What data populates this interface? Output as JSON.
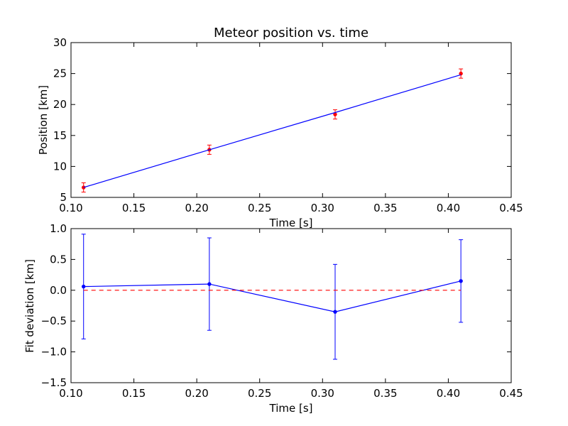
{
  "chart_data": [
    {
      "type": "line",
      "title": "Meteor position vs. time",
      "xlabel": "Time [s]",
      "ylabel": "Position [km]",
      "xlim": [
        0.1,
        0.45
      ],
      "ylim": [
        5,
        30
      ],
      "x_ticks": [
        "0.10",
        "0.15",
        "0.20",
        "0.25",
        "0.30",
        "0.35",
        "0.40",
        "0.45"
      ],
      "y_ticks": [
        "5",
        "10",
        "15",
        "20",
        "25",
        "30"
      ],
      "grid": false,
      "series": [
        {
          "kind": "errorbar-points",
          "x": [
            0.11,
            0.21,
            0.31,
            0.41
          ],
          "y": [
            6.6,
            12.7,
            18.4,
            25.0
          ],
          "yerr": [
            0.75,
            0.75,
            0.75,
            0.75
          ],
          "color": "#ff0000"
        },
        {
          "kind": "fit-line",
          "x": [
            0.11,
            0.21,
            0.31,
            0.41
          ],
          "y": [
            6.6,
            12.7,
            18.7,
            24.8
          ],
          "color": "#0000ff"
        }
      ]
    },
    {
      "type": "line",
      "title": "",
      "xlabel": "Time [s]",
      "ylabel": "Fit deviation [km]",
      "xlim": [
        0.1,
        0.45
      ],
      "ylim": [
        -1.5,
        1.0
      ],
      "x_ticks": [
        "0.10",
        "0.15",
        "0.20",
        "0.25",
        "0.30",
        "0.35",
        "0.40",
        "0.45"
      ],
      "y_ticks": [
        "−1.5",
        "−1.0",
        "−0.5",
        "0.0",
        "0.5",
        "1.0"
      ],
      "grid": false,
      "series": [
        {
          "kind": "errorbar-line",
          "x": [
            0.11,
            0.21,
            0.31,
            0.41
          ],
          "y": [
            0.06,
            0.1,
            -0.35,
            0.15
          ],
          "yerr": [
            0.85,
            0.75,
            0.77,
            0.67
          ],
          "color": "#0000ff"
        },
        {
          "kind": "zero-line",
          "x": [
            0.11,
            0.41
          ],
          "y": [
            0.0,
            0.0
          ],
          "color": "#ff0000",
          "dashed": true
        }
      ]
    }
  ]
}
